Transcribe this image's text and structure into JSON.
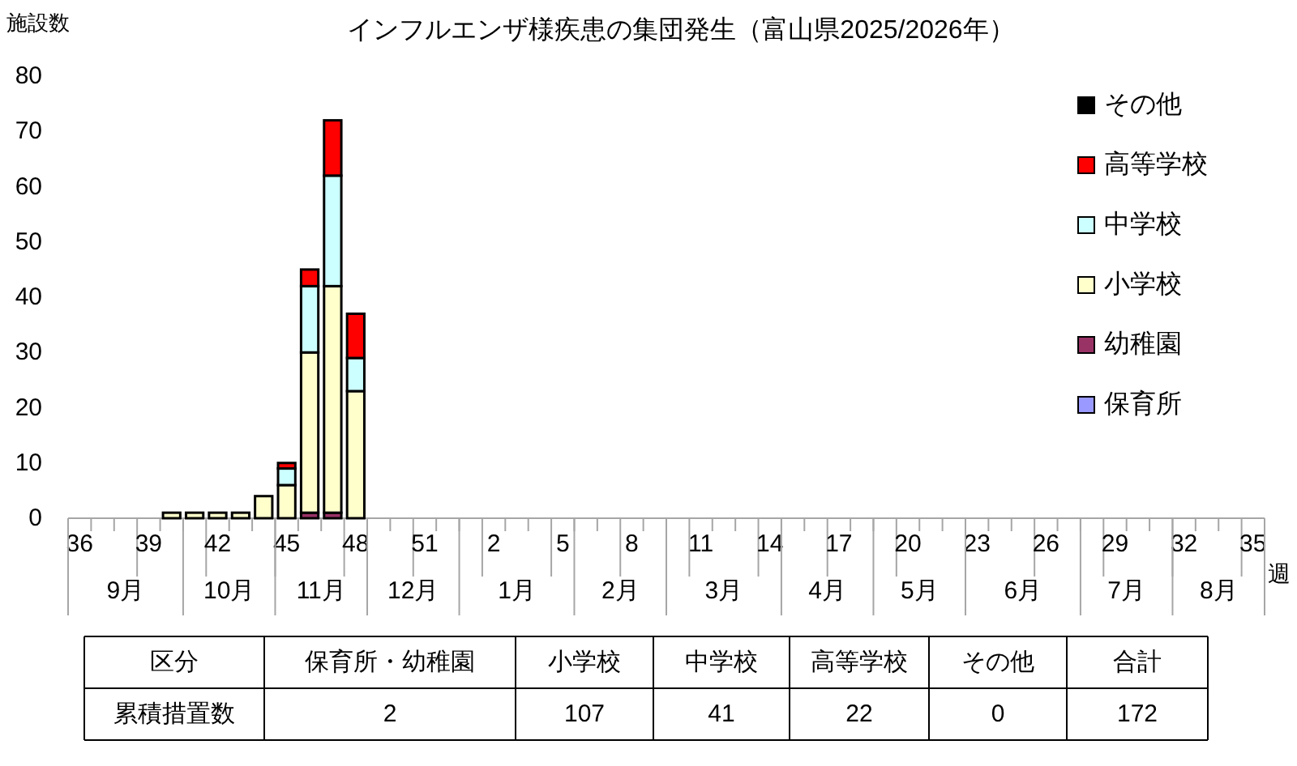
{
  "chart_data": {
    "type": "bar",
    "stacked": true,
    "title": "インフルエンザ様疾患の集団発生（富山県2025/2026年）",
    "ylabel": "施設数",
    "xlabel": "週",
    "categories": [
      "36",
      null,
      null,
      "39",
      null,
      null,
      "42",
      null,
      null,
      "45",
      null,
      null,
      "48",
      null,
      null,
      "51",
      null,
      null,
      "2",
      null,
      null,
      "5",
      null,
      null,
      "8",
      null,
      null,
      "11",
      null,
      null,
      "14",
      null,
      null,
      "17",
      null,
      null,
      "20",
      null,
      null,
      "23",
      null,
      null,
      "26",
      null,
      null,
      "29",
      null,
      null,
      "32",
      null,
      null,
      "35"
    ],
    "series": [
      {
        "name": "保育所",
        "color": "#9999ff",
        "values": [
          0,
          0,
          0,
          0,
          0,
          0,
          0,
          0,
          0,
          0,
          0,
          0,
          0,
          null,
          null,
          null,
          null,
          null,
          null,
          null,
          null,
          null,
          null,
          null,
          null,
          null,
          null,
          null,
          null,
          null,
          null,
          null,
          null,
          null,
          null,
          null,
          null,
          null,
          null,
          null,
          null,
          null,
          null,
          null,
          null,
          null,
          null,
          null,
          null,
          null,
          null,
          null
        ]
      },
      {
        "name": "幼稚園",
        "color": "#993366",
        "values": [
          0,
          0,
          0,
          0,
          0,
          0,
          0,
          0,
          0,
          0,
          1,
          1,
          0,
          null,
          null,
          null,
          null,
          null,
          null,
          null,
          null,
          null,
          null,
          null,
          null,
          null,
          null,
          null,
          null,
          null,
          null,
          null,
          null,
          null,
          null,
          null,
          null,
          null,
          null,
          null,
          null,
          null,
          null,
          null,
          null,
          null,
          null,
          null,
          null,
          null,
          null,
          null
        ]
      },
      {
        "name": "小学校",
        "color": "#ffffcc",
        "values": [
          0,
          0,
          0,
          0,
          1,
          1,
          1,
          1,
          4,
          6,
          29,
          41,
          23,
          null,
          null,
          null,
          null,
          null,
          null,
          null,
          null,
          null,
          null,
          null,
          null,
          null,
          null,
          null,
          null,
          null,
          null,
          null,
          null,
          null,
          null,
          null,
          null,
          null,
          null,
          null,
          null,
          null,
          null,
          null,
          null,
          null,
          null,
          null,
          null,
          null,
          null,
          null
        ]
      },
      {
        "name": "中学校",
        "color": "#ccffff",
        "values": [
          0,
          0,
          0,
          0,
          0,
          0,
          0,
          0,
          0,
          3,
          12,
          20,
          6,
          null,
          null,
          null,
          null,
          null,
          null,
          null,
          null,
          null,
          null,
          null,
          null,
          null,
          null,
          null,
          null,
          null,
          null,
          null,
          null,
          null,
          null,
          null,
          null,
          null,
          null,
          null,
          null,
          null,
          null,
          null,
          null,
          null,
          null,
          null,
          null,
          null,
          null,
          null
        ]
      },
      {
        "name": "高等学校",
        "color": "#ff0000",
        "values": [
          0,
          0,
          0,
          0,
          0,
          0,
          0,
          0,
          0,
          1,
          3,
          10,
          8,
          null,
          null,
          null,
          null,
          null,
          null,
          null,
          null,
          null,
          null,
          null,
          null,
          null,
          null,
          null,
          null,
          null,
          null,
          null,
          null,
          null,
          null,
          null,
          null,
          null,
          null,
          null,
          null,
          null,
          null,
          null,
          null,
          null,
          null,
          null,
          null,
          null,
          null,
          null
        ]
      },
      {
        "name": "その他",
        "color": "#000000",
        "values": [
          0,
          0,
          0,
          0,
          0,
          0,
          0,
          0,
          0,
          0,
          0,
          0,
          0,
          null,
          null,
          null,
          null,
          null,
          null,
          null,
          null,
          null,
          null,
          null,
          null,
          null,
          null,
          null,
          null,
          null,
          null,
          null,
          null,
          null,
          null,
          null,
          null,
          null,
          null,
          null,
          null,
          null,
          null,
          null,
          null,
          null,
          null,
          null,
          null,
          null,
          null,
          null
        ]
      }
    ],
    "ylim": [
      0,
      80
    ],
    "yticks": [
      0,
      10,
      20,
      30,
      40,
      50,
      60,
      70,
      80
    ],
    "legend": "top right",
    "annotations": [
      "9月",
      "10月",
      "11月",
      "12月",
      "1月",
      "2月",
      "3月",
      "4月",
      "5月",
      "6月",
      "7月",
      "8月",
      "区分",
      "保育所・幼稚園",
      "小学校",
      "中学校",
      "高等学校",
      "その他",
      "合計",
      "累積措置数",
      "2",
      "107",
      "41",
      "22",
      "0",
      "172"
    ]
  }
}
